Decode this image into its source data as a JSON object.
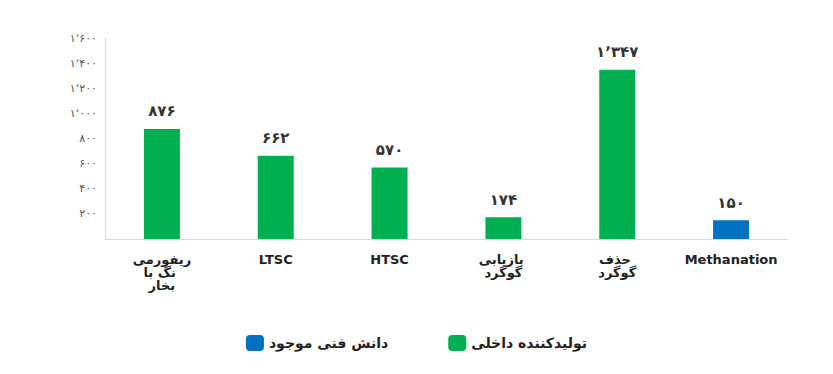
{
  "chart_data": {
    "type": "bar",
    "categories": [
      "ریفورمینگ با بخار",
      "LTSC",
      "HTSC",
      "بازیابی گوگرد",
      "حذف گوگرد",
      "Methanation"
    ],
    "series": [
      {
        "name": "تولیدکننده داخلی",
        "color": "#00b050",
        "values": [
          876,
          662,
          570,
          174,
          1347,
          null
        ],
        "value_labels": [
          "۸۷۶",
          "۶۶۲",
          "۵۷۰",
          "۱۷۴",
          "۱٬۳۴۷",
          null
        ]
      },
      {
        "name": "دانش فنی موجود",
        "color": "#0070c0",
        "values": [
          null,
          null,
          null,
          null,
          null,
          150
        ],
        "value_labels": [
          null,
          null,
          null,
          null,
          null,
          "۱۵۰"
        ]
      }
    ],
    "ylim": [
      0,
      1600
    ],
    "yticks": [
      {
        "value": 200,
        "label": "۲۰۰"
      },
      {
        "value": 400,
        "label": "۴۰۰"
      },
      {
        "value": 600,
        "label": "۶۰۰"
      },
      {
        "value": 800,
        "label": "۸۰۰"
      },
      {
        "value": 1000,
        "label": "۱٬۰۰۰"
      },
      {
        "value": 1200,
        "label": "۱٬۲۰۰"
      },
      {
        "value": 1400,
        "label": "۱٬۴۰۰"
      },
      {
        "value": 1600,
        "label": "۱٬۶۰۰"
      }
    ],
    "grid": false,
    "legend": "bottom",
    "data_labels": true
  }
}
